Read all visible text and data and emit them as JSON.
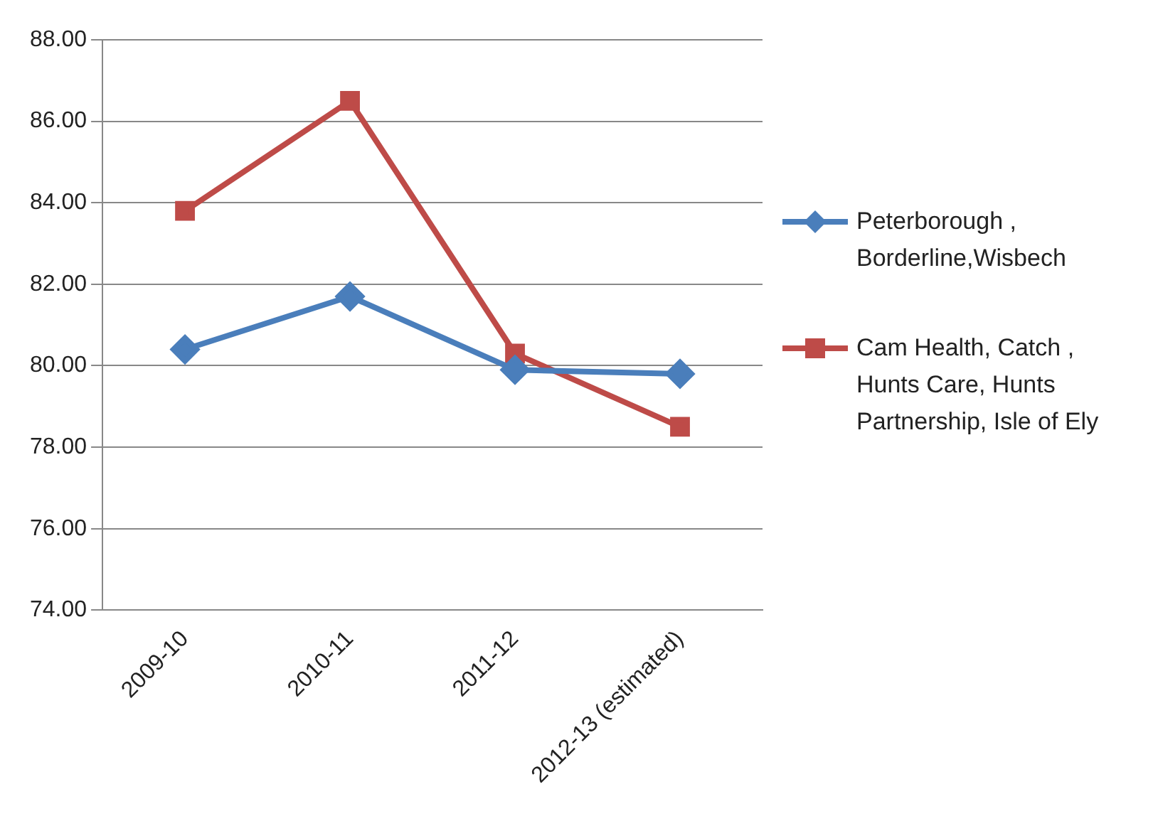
{
  "chart_data": {
    "type": "line",
    "categories": [
      "2009-10",
      "2010-11",
      "2011-12",
      "2012-13 (estimated)"
    ],
    "series": [
      {
        "name": "Peterborough , Borderline,Wisbech",
        "color": "#4a7ebb",
        "marker": "diamond",
        "values": [
          80.4,
          81.7,
          79.9,
          79.8
        ]
      },
      {
        "name": "Cam Health, Catch , Hunts Care, Hunts Partnership, Isle of Ely",
        "color": "#be4b48",
        "marker": "square",
        "values": [
          83.8,
          86.5,
          80.3,
          78.5
        ]
      }
    ],
    "ylim": [
      74,
      88
    ],
    "yticks": [
      {
        "value": 74,
        "label": "74.00"
      },
      {
        "value": 76,
        "label": "76.00"
      },
      {
        "value": 78,
        "label": "78.00"
      },
      {
        "value": 80,
        "label": "80.00"
      },
      {
        "value": 82,
        "label": "82.00"
      },
      {
        "value": 84,
        "label": "84.00"
      },
      {
        "value": 86,
        "label": "86.00"
      },
      {
        "value": 88,
        "label": "88.00"
      }
    ],
    "grid": "y",
    "legend": "right",
    "line_style": "solid"
  }
}
